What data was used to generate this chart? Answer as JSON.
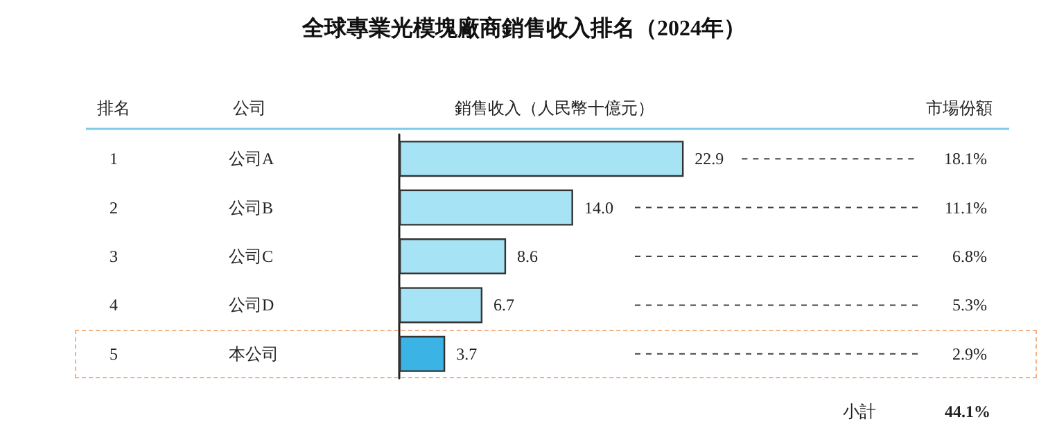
{
  "chart_data": {
    "type": "bar",
    "orientation": "horizontal",
    "title": "全球專業光模塊廠商銷售收入排名（2024年）",
    "xlabel": "銷售收入（人民幣十億元）",
    "ylabel": "公司",
    "categories": [
      "公司A",
      "公司B",
      "公司C",
      "公司D",
      "本公司"
    ],
    "values": [
      22.9,
      14.0,
      8.6,
      6.7,
      3.7
    ],
    "colors": [
      "#a6e4f5",
      "#a6e4f5",
      "#a6e4f5",
      "#a6e4f5",
      "#3bb4e5"
    ],
    "value_labels": [
      "22.9",
      "14.0",
      "8.6",
      "6.7",
      "3.7"
    ],
    "annotations": [
      "排名",
      "市場份額",
      "1",
      "18.1%",
      "2",
      "11.1%",
      "3",
      "6.8%",
      "4",
      "5.3%",
      "5",
      "2.9%",
      "小計",
      "44.1%"
    ]
  }
}
